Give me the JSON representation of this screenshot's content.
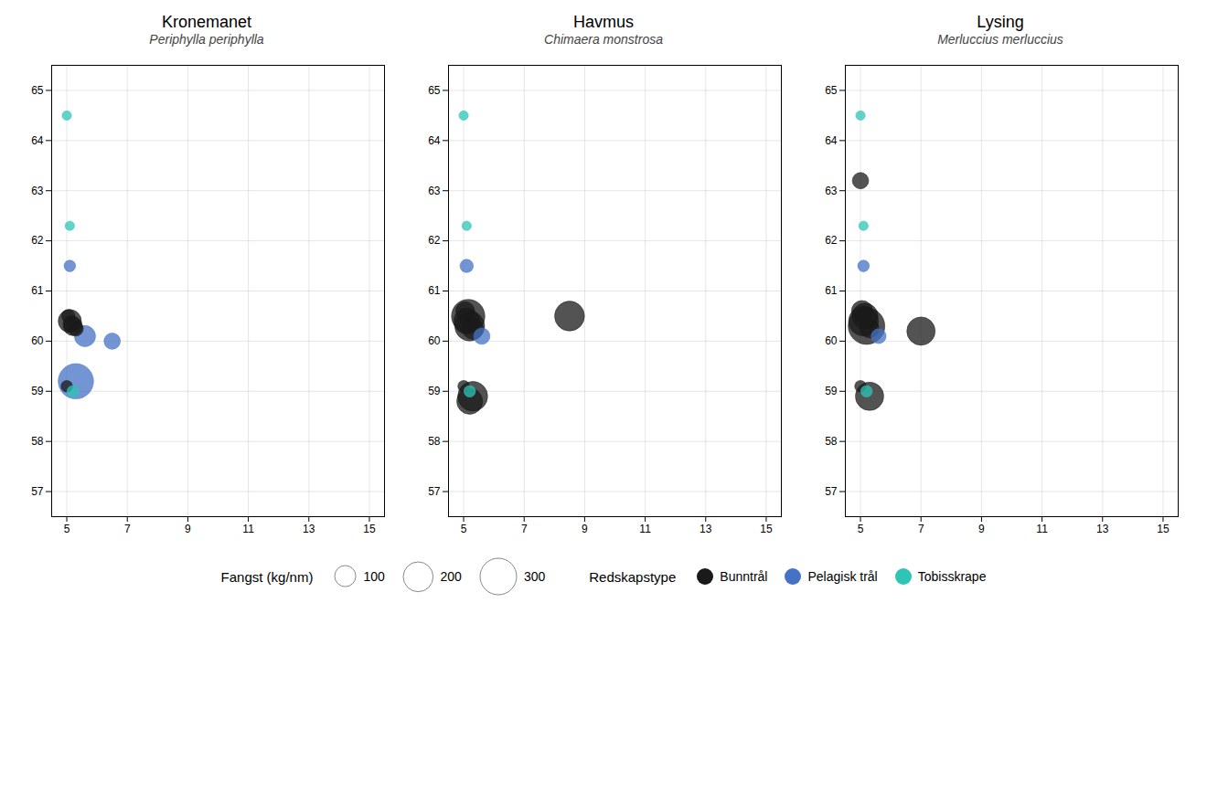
{
  "chart_data": [
    {
      "type": "scatter",
      "title": "Kronemanet",
      "subtitle": "Periphylla periphylla",
      "x": [
        5.1,
        5.2,
        5.15,
        5.3,
        5.05,
        5.6,
        6.5,
        5.1,
        5.3,
        5.0,
        5.2,
        5.1,
        5.0
      ],
      "y": [
        60.4,
        60.3,
        60.35,
        60.25,
        60.5,
        60.1,
        60.0,
        61.5,
        59.2,
        59.1,
        59.0,
        62.3,
        64.5
      ],
      "sizes": [
        120,
        80,
        60,
        50,
        40,
        100,
        60,
        30,
        280,
        30,
        30,
        20,
        20
      ],
      "groups": [
        "Bunntrål",
        "Bunntrål",
        "Bunntrål",
        "Bunntrål",
        "Bunntrål",
        "Pelagisk trål",
        "Pelagisk trål",
        "Pelagisk trål",
        "Pelagisk trål",
        "Bunntrål",
        "Tobisskrape",
        "Tobisskrape",
        "Tobisskrape"
      ],
      "series": [
        {
          "name": "Bunntrål",
          "color": "#1a1a1a"
        },
        {
          "name": "Pelagisk trål",
          "color": "#4472c4"
        },
        {
          "name": "Tobisskrape",
          "color": "#2ec4b6"
        }
      ],
      "xlim": [
        4.5,
        15.5
      ],
      "xticks": [
        5,
        7,
        9,
        11,
        13,
        15
      ],
      "ylim": [
        56.5,
        65.5
      ],
      "yticks": [
        57,
        58,
        59,
        60,
        61,
        62,
        63,
        64,
        65
      ],
      "grid": true,
      "legend": "bottom",
      "size_label": "Fangst (kg/nm)",
      "size_values": [
        100,
        200,
        300
      ],
      "type_label": "Redskapstype"
    },
    {
      "type": "scatter",
      "title": "Havmus",
      "subtitle": "Chimaera monstrosa",
      "x": [
        5.1,
        5.2,
        5.15,
        5.3,
        5.05,
        8.5,
        5.6,
        5.1,
        5.3,
        5.2,
        5.0,
        5.2,
        5.1,
        5.0
      ],
      "y": [
        60.4,
        60.3,
        60.5,
        60.25,
        60.6,
        60.5,
        60.1,
        61.5,
        58.9,
        58.8,
        59.1,
        59.0,
        62.3,
        64.5
      ],
      "sizes": [
        150,
        200,
        250,
        100,
        80,
        200,
        60,
        40,
        200,
        150,
        30,
        30,
        20,
        20
      ],
      "groups": [
        "Bunntrål",
        "Bunntrål",
        "Bunntrål",
        "Bunntrål",
        "Bunntrål",
        "Bunntrål",
        "Pelagisk trål",
        "Pelagisk trål",
        "Bunntrål",
        "Bunntrål",
        "Bunntrål",
        "Tobisskrape",
        "Tobisskrape",
        "Tobisskrape"
      ],
      "series": [
        {
          "name": "Bunntrål",
          "color": "#1a1a1a"
        },
        {
          "name": "Pelagisk trål",
          "color": "#4472c4"
        },
        {
          "name": "Tobisskrape",
          "color": "#2ec4b6"
        }
      ],
      "xlim": [
        4.5,
        15.5
      ],
      "xticks": [
        5,
        7,
        9,
        11,
        13,
        15
      ],
      "ylim": [
        56.5,
        65.5
      ],
      "yticks": [
        57,
        58,
        59,
        60,
        61,
        62,
        63,
        64,
        65
      ],
      "grid": true
    },
    {
      "type": "scatter",
      "title": "Lysing",
      "subtitle": "Merluccius merluccius",
      "x": [
        5.1,
        5.2,
        5.15,
        5.3,
        5.05,
        7.0,
        5.6,
        5.1,
        5.3,
        5.0,
        5.2,
        5.1,
        5.0,
        5.0
      ],
      "y": [
        60.4,
        60.3,
        60.5,
        60.25,
        60.6,
        60.2,
        60.1,
        61.5,
        58.9,
        59.1,
        59.0,
        62.3,
        64.5,
        63.2
      ],
      "sizes": [
        200,
        300,
        150,
        80,
        100,
        180,
        50,
        30,
        180,
        30,
        30,
        20,
        20,
        60
      ],
      "groups": [
        "Bunntrål",
        "Bunntrål",
        "Bunntrål",
        "Bunntrål",
        "Bunntrål",
        "Bunntrål",
        "Pelagisk trål",
        "Pelagisk trål",
        "Bunntrål",
        "Bunntrål",
        "Tobisskrape",
        "Tobisskrape",
        "Tobisskrape",
        "Bunntrål"
      ],
      "series": [
        {
          "name": "Bunntrål",
          "color": "#1a1a1a"
        },
        {
          "name": "Pelagisk trål",
          "color": "#4472c4"
        },
        {
          "name": "Tobisskrape",
          "color": "#2ec4b6"
        }
      ],
      "xlim": [
        4.5,
        15.5
      ],
      "xticks": [
        5,
        7,
        9,
        11,
        13,
        15
      ],
      "ylim": [
        56.5,
        65.5
      ],
      "yticks": [
        57,
        58,
        59,
        60,
        61,
        62,
        63,
        64,
        65
      ],
      "grid": true
    }
  ]
}
